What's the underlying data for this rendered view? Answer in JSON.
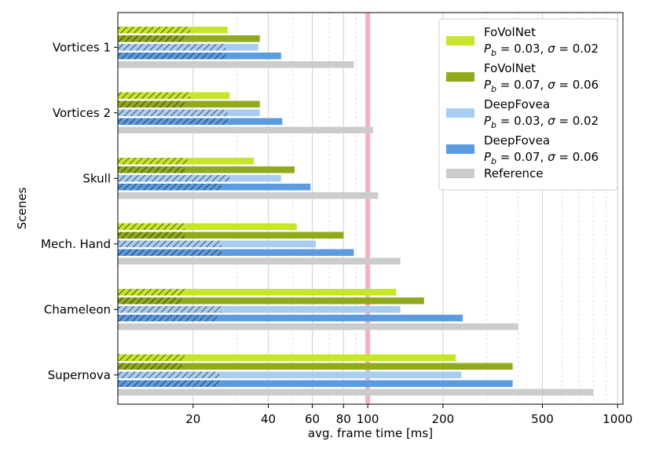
{
  "chart_data": {
    "type": "bar",
    "orientation": "horizontal",
    "xscale": "log",
    "xlabel": "avg. frame time [ms]",
    "ylabel": "Scenes",
    "xlim": [
      10,
      1050
    ],
    "xticks": [
      20,
      40,
      60,
      80,
      100,
      200,
      500,
      1000
    ],
    "xtick_labels": [
      "20",
      "40",
      "60",
      "80",
      "100",
      "200",
      "500",
      "1000"
    ],
    "reference_line": {
      "x": 100,
      "color": "#f4a6b4"
    },
    "categories": [
      "Vortices 1",
      "Vortices 2",
      "Skull",
      "Mech. Hand",
      "Chameleon",
      "Supernova"
    ],
    "series": [
      {
        "name": "FoVolNet",
        "params": "P_b = 0.03, σ = 0.02",
        "color": "#c6e62a",
        "hatched_part": [
          19.5,
          19.5,
          19,
          18.5,
          18.5,
          18.5
        ],
        "values": [
          27.5,
          28,
          35,
          52,
          130,
          225
        ]
      },
      {
        "name": "FoVolNet",
        "params": "P_b = 0.07, σ = 0.06",
        "color": "#8faa1c",
        "hatched_part": [
          18.5,
          18.5,
          18.5,
          18.5,
          18,
          18
        ],
        "values": [
          37,
          37,
          51,
          80,
          168,
          380
        ]
      },
      {
        "name": "DeepFovea",
        "params": "P_b = 0.03, σ = 0.02",
        "color": "#a9cdf2",
        "hatched_part": [
          27,
          27.5,
          28,
          26,
          26,
          25.5
        ],
        "values": [
          36.5,
          37,
          45,
          62,
          135,
          237
        ]
      },
      {
        "name": "DeepFovea",
        "params": "P_b = 0.07, σ = 0.06",
        "color": "#5b9be0",
        "hatched_part": [
          27,
          27.5,
          26,
          26,
          25,
          25.5
        ],
        "values": [
          45,
          45.5,
          59,
          88,
          240,
          380
        ]
      },
      {
        "name": "Reference",
        "params": "",
        "color": "#cccccc",
        "values": [
          88,
          105,
          110,
          135,
          400,
          800
        ]
      }
    ],
    "legend": {
      "placement": "top-right",
      "entries": [
        {
          "line1": "FoVolNet",
          "pb": "0.03",
          "sigma": "0.02",
          "color": "#c6e62a"
        },
        {
          "line1": "FoVolNet",
          "pb": "0.07",
          "sigma": "0.06",
          "color": "#8faa1c"
        },
        {
          "line1": "DeepFovea",
          "pb": "0.03",
          "sigma": "0.02",
          "color": "#a9cdf2"
        },
        {
          "line1": "DeepFovea",
          "pb": "0.07",
          "sigma": "0.06",
          "color": "#5b9be0"
        },
        {
          "line1": "Reference",
          "color": "#cccccc"
        }
      ]
    }
  }
}
